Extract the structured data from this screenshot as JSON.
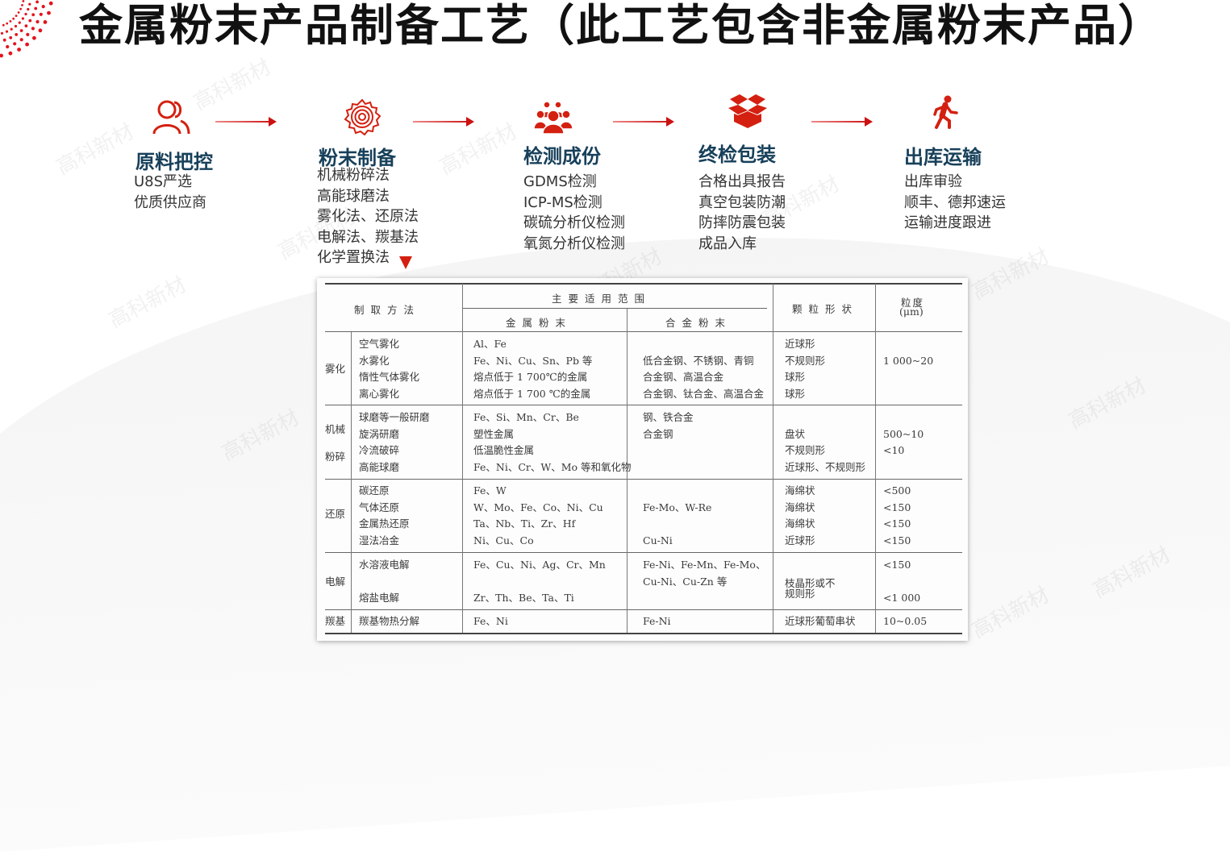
{
  "title": "金属粉末产品制备工艺（此工艺包含非金属粉末产品）",
  "watermark": "高科新材",
  "accent_color": "#d42010",
  "heading_color": "#17405a",
  "steps": [
    {
      "icon": "users-icon",
      "title": "原料把控",
      "lines": [
        "U8S严选",
        "优质供应商"
      ]
    },
    {
      "icon": "gear-icon",
      "title": "粉末制备",
      "lines": [
        "机械粉碎法",
        "高能球磨法",
        "雾化法、还原法",
        "电解法、羰基法",
        "化学置换法"
      ]
    },
    {
      "icon": "team-icon",
      "title": "检测成份",
      "lines": [
        "GDMS检测",
        "ICP-MS检测",
        "碳硫分析仪检测",
        "氧氮分析仪检测"
      ]
    },
    {
      "icon": "box-icon",
      "title": "终检包装",
      "lines": [
        "合格出具报告",
        "真空包装防潮",
        "防摔防震包装",
        "成品入库"
      ]
    },
    {
      "icon": "walking-person-icon",
      "title": "出库运输",
      "lines": [
        "出库审验",
        "顺丰、德邦速运",
        "运输进度跟进"
      ]
    }
  ],
  "table": {
    "headers": {
      "method": "制取方法",
      "scope": "主要适用范围",
      "metal": "金属粉末",
      "alloy": "合金粉末",
      "shape": "颗粒形状",
      "size": "粒度",
      "size_unit": "(μm)"
    },
    "groups": [
      {
        "name": [
          "雾化"
        ],
        "methods": [
          "空气雾化",
          "水雾化",
          "惰性气体雾化",
          "离心雾化"
        ],
        "metal": [
          "Al、Fe",
          "Fe、Ni、Cu、Sn、Pb 等",
          "熔点低于 1 700℃的金属",
          "熔点低于 1 700 ℃的金属"
        ],
        "alloy": [
          "",
          "低合金钢、不锈钢、青铜",
          "合金钢、高温合金",
          "合金钢、钛合金、高温合金"
        ],
        "shape": [
          "近球形",
          "不规则形",
          "球形",
          "球形"
        ],
        "size": [
          "",
          "1 000~20",
          "",
          ""
        ]
      },
      {
        "name": [
          "机械",
          "粉碎"
        ],
        "methods": [
          "球磨等一般研磨",
          "旋涡研磨",
          "冷流破碎",
          "高能球磨"
        ],
        "metal": [
          "Fe、Si、Mn、Cr、Be",
          "塑性金属",
          "低温脆性金属",
          "Fe、Ni、Cr、W、Mo 等和氧化物"
        ],
        "alloy": [
          "钢、铁合金",
          "合金钢",
          "",
          ""
        ],
        "shape": [
          "",
          "盘状",
          "不规则形",
          "近球形、不规则形"
        ],
        "size": [
          "",
          "500~10",
          "<10",
          ""
        ]
      },
      {
        "name": [
          "还原"
        ],
        "methods": [
          "碳还原",
          "气体还原",
          "金属热还原",
          "湿法冶金"
        ],
        "metal": [
          "Fe、W",
          "W、Mo、Fe、Co、Ni、Cu",
          "Ta、Nb、Ti、Zr、Hf",
          "Ni、Cu、Co"
        ],
        "alloy": [
          "",
          "Fe-Mo、W-Re",
          "",
          "Cu-Ni"
        ],
        "shape": [
          "海绵状",
          "海绵状",
          "海绵状",
          "近球形"
        ],
        "size": [
          "<500",
          "<150",
          "<150",
          "<150"
        ]
      },
      {
        "name": [
          "电解"
        ],
        "methods": [
          "水溶液电解",
          "",
          "熔盐电解"
        ],
        "metal": [
          "Fe、Cu、Ni、Ag、Cr、Mn",
          "",
          "Zr、Th、Be、Ta、Ti"
        ],
        "alloy": [
          "Fe-Ni、Fe-Mn、Fe-Mo、",
          "Cu-Ni、Cu-Zn 等",
          ""
        ],
        "shape": [
          "",
          "枝晶形或不",
          "规则形"
        ],
        "size": [
          "<150",
          "",
          "<1 000"
        ]
      },
      {
        "name": [
          "羰基"
        ],
        "methods": [
          "羰基物热分解"
        ],
        "metal": [
          "Fe、Ni"
        ],
        "alloy": [
          "Fe-Ni"
        ],
        "shape": [
          "近球形葡萄串状"
        ],
        "size": [
          "10~0.05"
        ]
      }
    ]
  }
}
